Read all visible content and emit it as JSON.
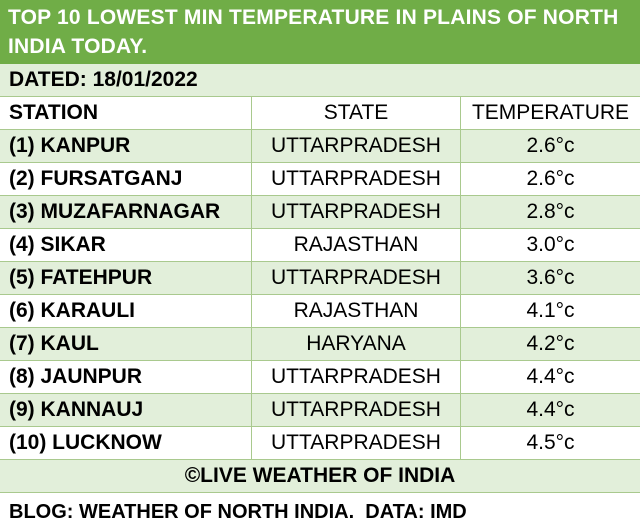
{
  "title": "TOP 10 LOWEST MIN TEMPERATURE IN PLAINS OF NORTH INDIA TODAY.",
  "dated": "DATED: 18/01/2022",
  "headers": [
    "STATION",
    "STATE",
    "TEMPERATURE"
  ],
  "rows": [
    {
      "station": "(1) KANPUR",
      "state": "UTTARPRADESH",
      "temp": "2.6°c"
    },
    {
      "station": "(2) FURSATGANJ",
      "state": "UTTARPRADESH",
      "temp": "2.6°c"
    },
    {
      "station": "(3) MUZAFARNAGAR",
      "state": "UTTARPRADESH",
      "temp": "2.8°c"
    },
    {
      "station": "(4) SIKAR",
      "state": "RAJASTHAN",
      "temp": "3.0°c"
    },
    {
      "station": "(5) FATEHPUR",
      "state": "UTTARPRADESH",
      "temp": "3.6°c"
    },
    {
      "station": "(6) KARAULI",
      "state": "RAJASTHAN",
      "temp": "4.1°c"
    },
    {
      "station": "(7) KAUL",
      "state": "HARYANA",
      "temp": "4.2°c"
    },
    {
      "station": "(8) JAUNPUR",
      "state": "UTTARPRADESH",
      "temp": "4.4°c"
    },
    {
      "station": "(9) KANNAUJ",
      "state": "UTTARPRADESH",
      "temp": "4.4°c"
    },
    {
      "station": "(10) LUCKNOW",
      "state": "UTTARPRADESH",
      "temp": "4.5°c"
    }
  ],
  "credit": "©LIVE WEATHER OF INDIA",
  "footer": "BLOG: WEATHER OF NORTH INDIA.  DATA: IMD",
  "colors": {
    "title_bg": "#70ad47",
    "band_bg": "#e2efda",
    "border": "#a9c98e"
  }
}
